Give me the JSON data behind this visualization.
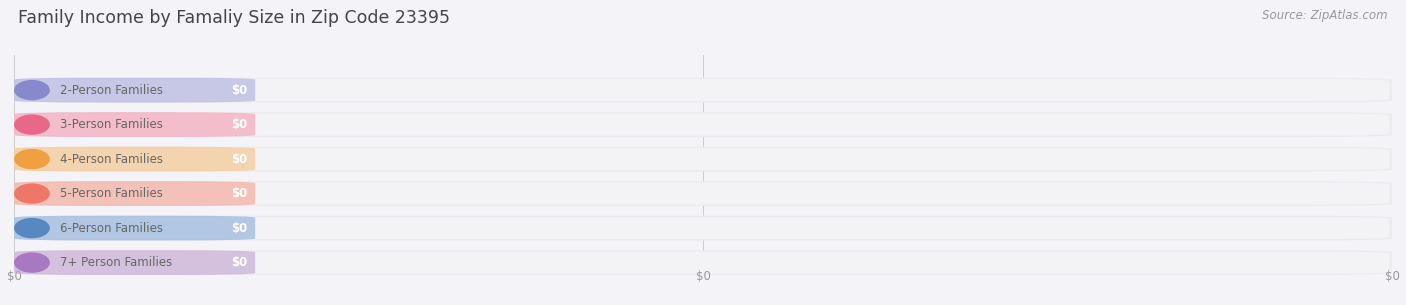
{
  "title": "Family Income by Famaliy Size in Zip Code 23395",
  "source": "Source: ZipAtlas.com",
  "categories": [
    "2-Person Families",
    "3-Person Families",
    "4-Person Families",
    "5-Person Families",
    "6-Person Families",
    "7+ Person Families"
  ],
  "values": [
    0,
    0,
    0,
    0,
    0,
    0
  ],
  "bar_colors": [
    "#aaaadd",
    "#f599b0",
    "#f5c080",
    "#f5a090",
    "#88aad8",
    "#c0a0d0"
  ],
  "dot_colors": [
    "#8888cc",
    "#e86888",
    "#f0a040",
    "#ee7868",
    "#5888c0",
    "#a878c0"
  ],
  "bg_color": "#f4f4f8",
  "bar_bg_color": "#ececf0",
  "bar_bg_color2": "#f8f8fa",
  "title_color": "#444444",
  "source_color": "#999999",
  "label_color": "#666666",
  "title_fontsize": 12.5,
  "source_fontsize": 8.5,
  "label_fontsize": 8.5,
  "value_fontsize": 8.5,
  "xtick_positions": [
    0.0,
    0.5,
    1.0
  ],
  "xlabel_ticks": [
    "$0",
    "$0",
    "$0"
  ]
}
